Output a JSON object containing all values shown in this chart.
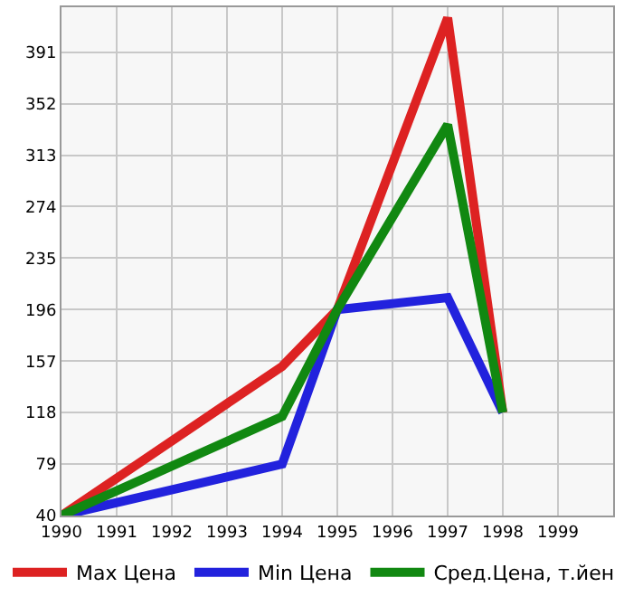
{
  "chart_data": {
    "type": "line",
    "x": [
      1990,
      1994,
      1995,
      1997,
      1998
    ],
    "series": [
      {
        "name": "Max Цена",
        "color": "#dd2222",
        "values": [
          40,
          153,
          196,
          417,
          118
        ]
      },
      {
        "name": "Min Цена",
        "color": "#2222dd",
        "values": [
          40,
          79,
          196,
          205,
          118
        ]
      },
      {
        "name": "Сред.Цена, т.йен",
        "color": "#118811",
        "values": [
          40,
          115,
          196,
          336,
          118
        ]
      }
    ],
    "xlim": [
      1990,
      2000
    ],
    "xticks": [
      1990,
      1991,
      1992,
      1993,
      1994,
      1995,
      1996,
      1997,
      1998,
      1999
    ],
    "ylim": [
      40,
      425
    ],
    "yticks": [
      40,
      79,
      118,
      157,
      196,
      235,
      274,
      313,
      352,
      391
    ],
    "grid": true,
    "legend": "bottom",
    "marker": "none",
    "line_style": "solid"
  }
}
